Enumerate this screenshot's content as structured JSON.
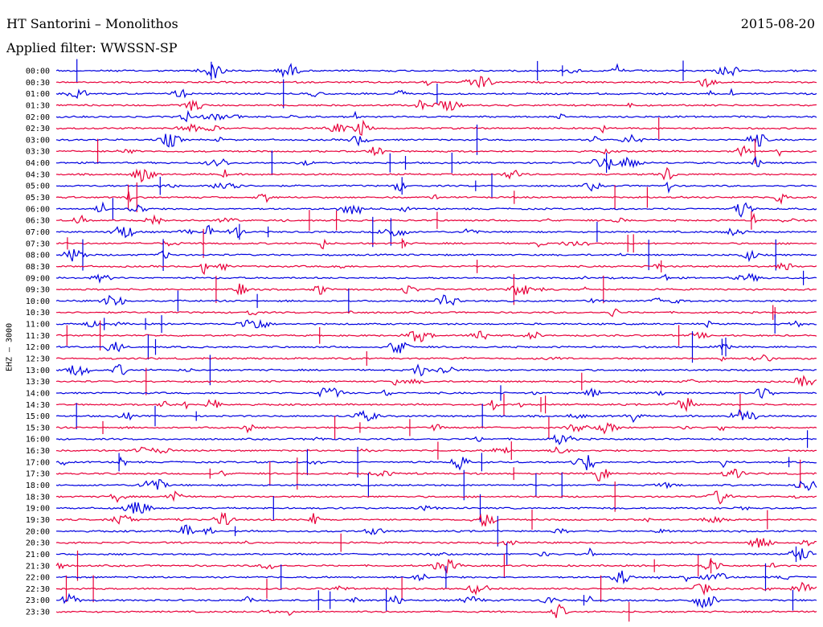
{
  "header": {
    "station": "HT Santorini – Monolithos",
    "date": "2015-08-20",
    "filter": "Applied filter: WWSSN-SP",
    "channel": "EHZ – 3000"
  },
  "chart_data": {
    "type": "line",
    "title": "HT Santorini – Monolithos",
    "subtitle": "Applied filter: WWSSN-SP",
    "ylabel": "EHZ – 3000",
    "colors": [
      "#0000e0",
      "#e8003a"
    ],
    "rows": [
      "00:00",
      "00:30",
      "01:00",
      "01:30",
      "02:00",
      "02:30",
      "03:00",
      "03:30",
      "04:00",
      "04:30",
      "05:00",
      "05:30",
      "06:00",
      "06:30",
      "07:00",
      "07:30",
      "08:00",
      "08:30",
      "09:00",
      "09:30",
      "10:00",
      "10:30",
      "11:00",
      "11:30",
      "12:00",
      "12:30",
      "13:00",
      "13:30",
      "14:00",
      "14:30",
      "15:00",
      "15:30",
      "16:00",
      "16:30",
      "17:00",
      "17:30",
      "18:00",
      "18:30",
      "19:00",
      "19:30",
      "20:00",
      "20:30",
      "21:00",
      "21:30",
      "22:00",
      "22:30",
      "23:00",
      "23:30"
    ]
  }
}
